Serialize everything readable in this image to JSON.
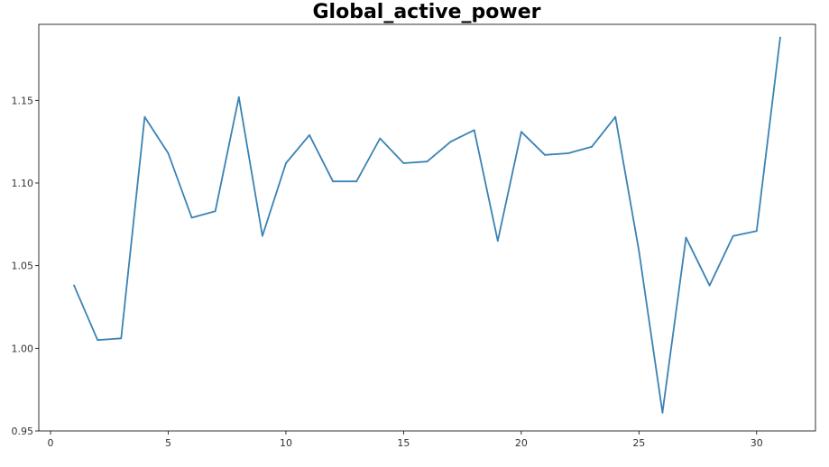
{
  "chart_data": {
    "type": "line",
    "title": "Global_active_power",
    "xlabel": "",
    "ylabel": "",
    "xlim": [
      -0.5,
      32.5
    ],
    "ylim": [
      0.95,
      1.196
    ],
    "grid": false,
    "x_ticks": [
      0,
      5,
      10,
      15,
      20,
      25,
      30
    ],
    "x_tick_labels": [
      "0",
      "5",
      "10",
      "15",
      "20",
      "25",
      "30"
    ],
    "y_ticks": [
      0.95,
      1.0,
      1.05,
      1.1,
      1.15
    ],
    "y_tick_labels": [
      "0.95",
      "1.00",
      "1.05",
      "1.10",
      "1.15"
    ],
    "series": [
      {
        "color": "#3a82b5",
        "x": [
          1,
          2,
          3,
          4,
          5,
          6,
          7,
          8,
          9,
          10,
          11,
          12,
          13,
          14,
          15,
          16,
          17,
          18,
          19,
          20,
          21,
          22,
          23,
          24,
          25,
          26,
          27,
          28,
          29,
          30,
          31
        ],
        "y": [
          1.038,
          1.005,
          1.006,
          1.14,
          1.118,
          1.079,
          1.083,
          1.152,
          1.068,
          1.112,
          1.129,
          1.101,
          1.101,
          1.127,
          1.112,
          1.113,
          1.125,
          1.132,
          1.065,
          1.131,
          1.117,
          1.118,
          1.122,
          1.14,
          1.059,
          0.961,
          1.067,
          1.038,
          1.068,
          1.071,
          1.188
        ]
      }
    ]
  }
}
